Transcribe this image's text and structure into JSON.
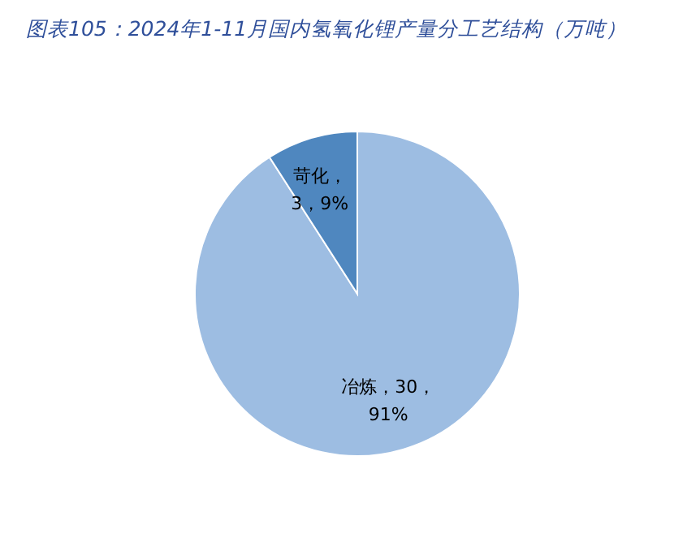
{
  "chart_data": {
    "type": "pie",
    "title": "图表105：2024年1-11月国内氢氧化锂产量分工艺结构（万吨）",
    "categories": [
      "冶炼",
      "苛化"
    ],
    "values": [
      30,
      3
    ],
    "colors": [
      "#9dbde2",
      "#4f87bf"
    ],
    "value_labels": [
      "，30，91%",
      "，3，9%"
    ],
    "legend": false
  }
}
